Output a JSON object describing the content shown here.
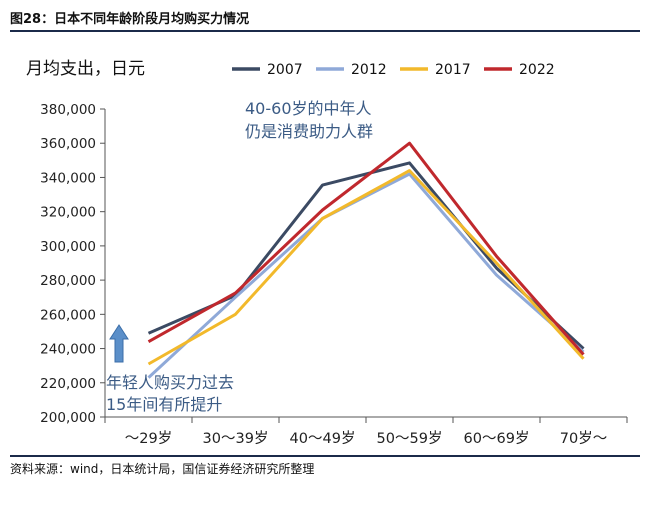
{
  "figure_title": "图28：日本不同年龄阶段月均购买力情况",
  "source_note": "资料来源：wind，日本统计局，国信证券经济研究所整理",
  "chart_data": {
    "type": "line",
    "ylabel": "月均支出，日元",
    "categories": [
      "～29岁",
      "30～39岁",
      "40～49岁",
      "50～59岁",
      "60～69岁",
      "70岁～"
    ],
    "ylim": [
      200000,
      380000
    ],
    "yticks": [
      200000,
      220000,
      240000,
      260000,
      280000,
      300000,
      320000,
      340000,
      360000,
      380000
    ],
    "ytick_labels": [
      "200,000",
      "220,000",
      "240,000",
      "260,000",
      "280,000",
      "300,000",
      "320,000",
      "340,000",
      "360,000",
      "380,000"
    ],
    "grid": false,
    "legend_position": "top",
    "series": [
      {
        "name": "2007",
        "color": "#3b4a63",
        "values": [
          249000,
          271000,
          335500,
          348500,
          287000,
          240000
        ]
      },
      {
        "name": "2012",
        "color": "#8fa9d8",
        "values": [
          223000,
          270000,
          316000,
          342000,
          283000,
          238000
        ]
      },
      {
        "name": "2017",
        "color": "#f2b92b",
        "values": [
          231000,
          260000,
          316000,
          344000,
          290000,
          234000
        ]
      },
      {
        "name": "2022",
        "color": "#c0282d",
        "values": [
          244000,
          272500,
          321000,
          360000,
          294000,
          236500
        ]
      }
    ],
    "annotations": [
      {
        "id": "middle-age",
        "lines": [
          "40-60岁的中年人",
          "仍是消费助力人群"
        ],
        "color": "#3b5b85"
      },
      {
        "id": "young",
        "lines": [
          "年轻人购买力过去",
          "15年间有所提升"
        ],
        "color": "#3b5b85"
      }
    ],
    "arrow_color": "#5b8fc9"
  }
}
